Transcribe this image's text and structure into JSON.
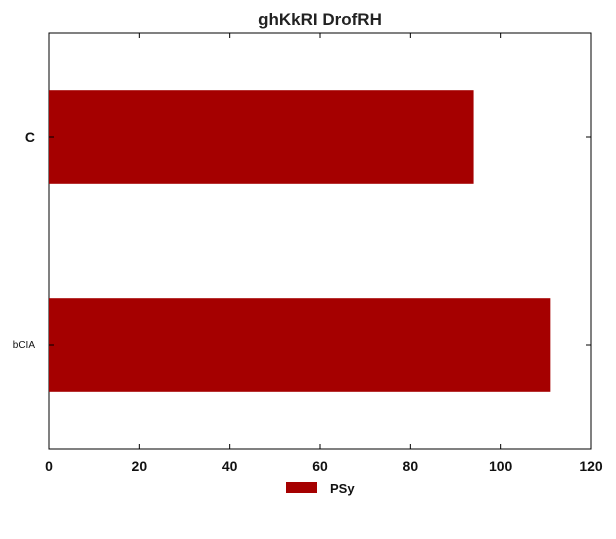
{
  "chart_data": {
    "type": "bar",
    "orientation": "horizontal",
    "title": "ghKkRI DrofRH",
    "xlabel": "",
    "ylabel": "",
    "categories": [
      "C",
      "bCIA"
    ],
    "series": [
      {
        "name": "PSy",
        "values": [
          94,
          111
        ],
        "color": "#a50000"
      }
    ],
    "xlim": [
      0,
      120
    ],
    "xticks": [
      0,
      20,
      40,
      60,
      80,
      100,
      120
    ],
    "grid": false,
    "legend": {
      "position": "bottom-center",
      "entries": [
        "PSy"
      ]
    }
  }
}
